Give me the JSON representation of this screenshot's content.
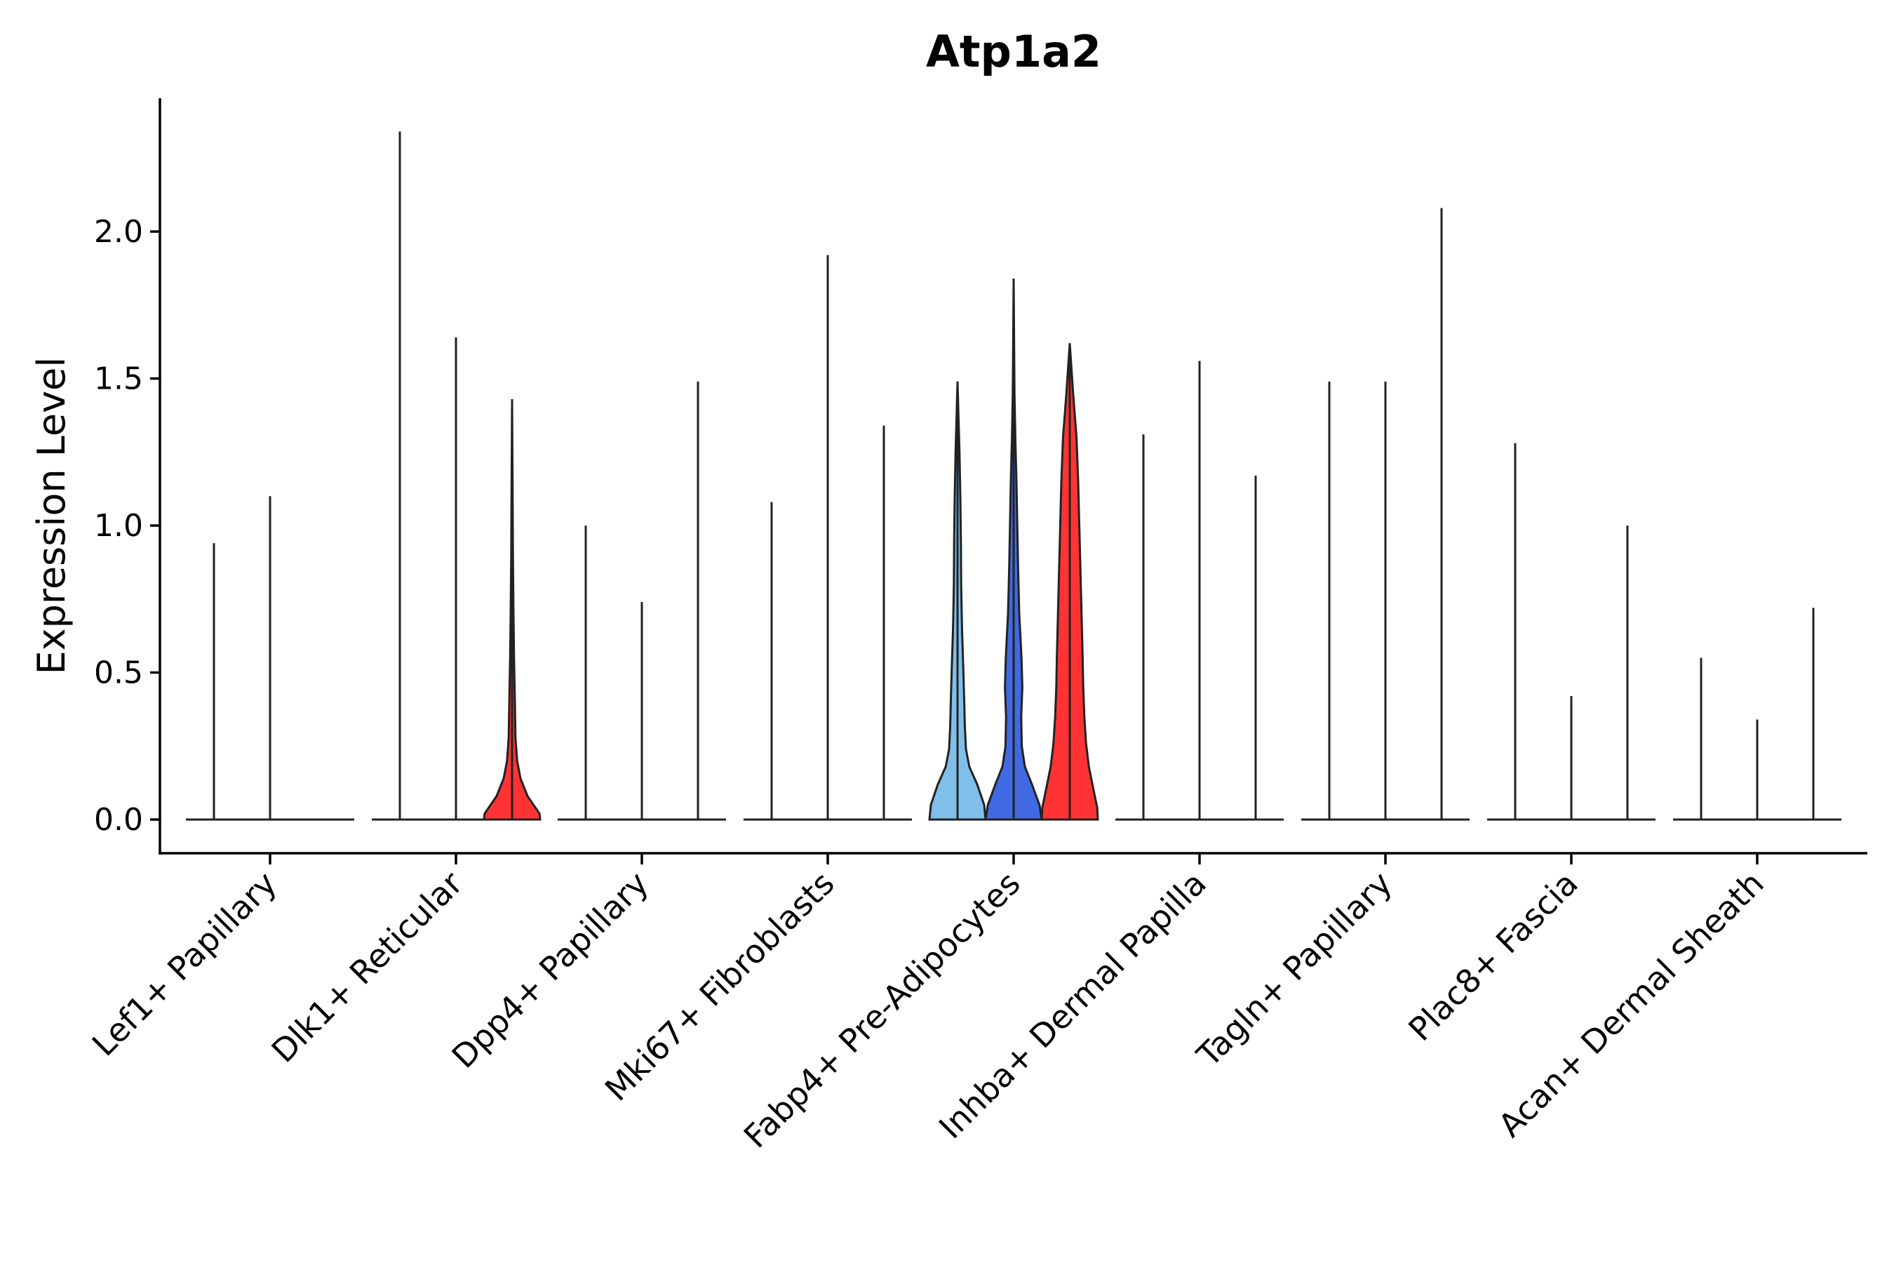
{
  "chart_data": {
    "type": "violin",
    "title": "Atp1a2",
    "xlabel": "",
    "ylabel": "Expression Level",
    "ylim": [
      -0.12,
      2.45
    ],
    "yticks": [
      "0.0",
      "0.5",
      "1.0",
      "1.5",
      "2.0"
    ],
    "ytick_values": [
      0.0,
      0.5,
      1.0,
      1.5,
      2.0
    ],
    "grid": false,
    "legend": "none",
    "colors": {
      "none": "#ffffff",
      "light_blue": "#7fbfea",
      "blue": "#4169e1",
      "red": "#ff3333"
    },
    "categories": [
      "Lef1+ Papillary",
      "Dlk1+ Reticular",
      "Dpp4+ Papillary",
      "Mki67+ Fibroblasts",
      "Fabp4+ Pre-Adipocytes",
      "Inhba+ Dermal Papilla",
      "Tagln+ Papillary",
      "Plac8+ Fascia",
      "Acan+ Dermal Sheath"
    ],
    "groups": [
      {
        "category": "Lef1+ Papillary",
        "violins": [
          {
            "max": 0.94,
            "fill": "none",
            "shape": "flat"
          },
          {
            "max": 1.1,
            "fill": "none",
            "shape": "flat"
          },
          {
            "max": 0.0,
            "fill": "none",
            "shape": "flat"
          }
        ]
      },
      {
        "category": "Dlk1+ Reticular",
        "violins": [
          {
            "max": 2.34,
            "fill": "none",
            "shape": "flat"
          },
          {
            "max": 1.64,
            "fill": "none",
            "shape": "flat"
          },
          {
            "max": 1.43,
            "fill": "red",
            "shape": "small"
          }
        ]
      },
      {
        "category": "Dpp4+ Papillary",
        "violins": [
          {
            "max": 1.0,
            "fill": "none",
            "shape": "flat"
          },
          {
            "max": 0.74,
            "fill": "none",
            "shape": "flat"
          },
          {
            "max": 1.49,
            "fill": "none",
            "shape": "flat"
          }
        ]
      },
      {
        "category": "Mki67+ Fibroblasts",
        "violins": [
          {
            "max": 1.08,
            "fill": "none",
            "shape": "flat"
          },
          {
            "max": 1.92,
            "fill": "none",
            "shape": "flat"
          },
          {
            "max": 1.34,
            "fill": "none",
            "shape": "flat"
          }
        ]
      },
      {
        "category": "Fabp4+ Pre-Adipocytes",
        "violins": [
          {
            "max": 1.49,
            "fill": "light_blue",
            "shape": "tallA"
          },
          {
            "max": 1.84,
            "fill": "blue",
            "shape": "tallB"
          },
          {
            "max": 1.62,
            "fill": "red",
            "shape": "tallC"
          }
        ]
      },
      {
        "category": "Inhba+ Dermal Papilla",
        "violins": [
          {
            "max": 1.31,
            "fill": "none",
            "shape": "flat"
          },
          {
            "max": 1.56,
            "fill": "none",
            "shape": "flat"
          },
          {
            "max": 1.17,
            "fill": "none",
            "shape": "flat"
          }
        ]
      },
      {
        "category": "Tagln+ Papillary",
        "violins": [
          {
            "max": 1.49,
            "fill": "none",
            "shape": "flat"
          },
          {
            "max": 1.49,
            "fill": "none",
            "shape": "flat"
          },
          {
            "max": 2.08,
            "fill": "none",
            "shape": "flat"
          }
        ]
      },
      {
        "category": "Plac8+ Fascia",
        "violins": [
          {
            "max": 1.28,
            "fill": "none",
            "shape": "flat"
          },
          {
            "max": 0.42,
            "fill": "none",
            "shape": "flat"
          },
          {
            "max": 1.0,
            "fill": "none",
            "shape": "flat"
          }
        ]
      },
      {
        "category": "Acan+ Dermal Sheath",
        "violins": [
          {
            "max": 0.55,
            "fill": "none",
            "shape": "flat"
          },
          {
            "max": 0.34,
            "fill": "none",
            "shape": "flat"
          },
          {
            "max": 0.72,
            "fill": "none",
            "shape": "flat"
          }
        ]
      }
    ]
  }
}
